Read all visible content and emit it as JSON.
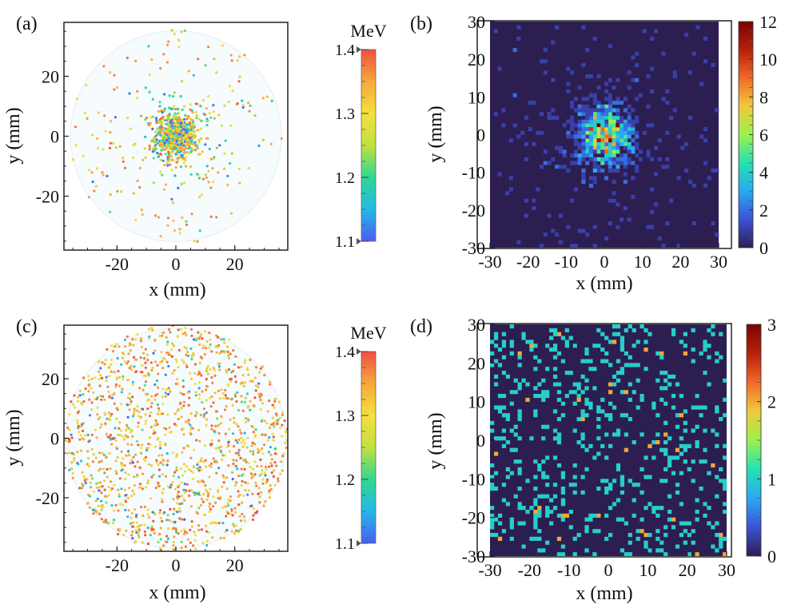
{
  "figure": {
    "panels": [
      "(a)",
      "(b)",
      "(c)",
      "(d)"
    ]
  },
  "colors": {
    "cmap_energy": [
      "#4a5cf0",
      "#25b8e8",
      "#30d890",
      "#c0e040",
      "#f4e03c",
      "#f6a83c",
      "#ee5040"
    ],
    "cmap_density": [
      "#2d1e52",
      "#3d52d6",
      "#2aa8f2",
      "#24e2b2",
      "#9cf04e",
      "#f0c93a",
      "#f06a28",
      "#b8200a",
      "#7a0403"
    ],
    "panel_bg_scatter": "#f6fbfe",
    "heatmap_bg": "#2d1e52"
  },
  "chart_data": [
    {
      "panel": "(a)",
      "type": "scatter",
      "xlabel": "x (mm)",
      "ylabel": "y (mm)",
      "xlim": [
        -38,
        38
      ],
      "ylim": [
        -38,
        38
      ],
      "xticks": [
        -20,
        0,
        20
      ],
      "yticks": [
        -20,
        0,
        20
      ],
      "xtick_labels": [
        "-20",
        "0",
        "20"
      ],
      "ytick_labels": [
        "-20",
        "0",
        "20"
      ],
      "detector_radius_mm": 36,
      "distribution": "concentrated around center (Gaussian, sigma about 4 mm) with sparse scattered points",
      "n_points_approx": 900,
      "color_variable": "energy (MeV), 1.1–1.4"
    },
    {
      "panel": "(a) colorbar",
      "type": "colorbar",
      "unit": "MeV",
      "range": [
        1.1,
        1.4
      ],
      "ticks": [
        1.1,
        1.2,
        1.3,
        1.4
      ],
      "tick_labels": [
        "1.1",
        "1.2",
        "1.3",
        "1.4"
      ]
    },
    {
      "panel": "(b)",
      "type": "heatmap",
      "xlabel": "x (mm)",
      "ylabel": "y (mm)",
      "xlim": [
        -30,
        30
      ],
      "ylim": [
        -30,
        30
      ],
      "xticks": [
        -30,
        -20,
        -10,
        0,
        10,
        20,
        30
      ],
      "xtick_labels": [
        "-30",
        "-20",
        "-10",
        "0",
        "10",
        "20",
        "30"
      ],
      "yticks": [
        -30,
        -20,
        -10,
        0,
        10,
        20,
        30
      ],
      "ytick_labels": [
        "-30",
        "-20",
        "-10",
        "0",
        "10",
        "20",
        "30"
      ],
      "bin_size_mm": 1,
      "max_count": 12,
      "hotspots": [
        [
          -2,
          2,
          9
        ],
        [
          3,
          2,
          8
        ],
        [
          -2,
          -2,
          7
        ],
        [
          2.5,
          -2.5,
          7
        ]
      ],
      "distribution": "counts peak near center (max about 12), sparse single counts elsewhere"
    },
    {
      "panel": "(b) colorbar",
      "type": "colorbar",
      "range": [
        0,
        12
      ],
      "ticks": [
        0,
        2,
        4,
        6,
        8,
        10,
        12
      ],
      "tick_labels": [
        "0",
        "2",
        "4",
        "6",
        "8",
        "10",
        "12"
      ]
    },
    {
      "panel": "(c)",
      "type": "scatter",
      "xlabel": "x (mm)",
      "ylabel": "y (mm)",
      "xlim": [
        -38,
        38
      ],
      "ylim": [
        -38,
        38
      ],
      "xticks": [
        -20,
        0,
        20
      ],
      "yticks": [
        -20,
        0,
        20
      ],
      "xtick_labels": [
        "-20",
        "0",
        "20"
      ],
      "ytick_labels": [
        "-20",
        "0",
        "20"
      ],
      "detector_radius_mm": 38,
      "distribution": "roughly uniform over the circular detector, mostly high energy (orange/yellow)",
      "n_points_approx": 1300,
      "color_variable": "energy (MeV), 1.1–1.4"
    },
    {
      "panel": "(c) colorbar",
      "type": "colorbar",
      "unit": "MeV",
      "range": [
        1.1,
        1.4
      ],
      "ticks": [
        1.1,
        1.2,
        1.3,
        1.4
      ],
      "tick_labels": [
        "1.1",
        "1.2",
        "1.3",
        "1.4"
      ]
    },
    {
      "panel": "(d)",
      "type": "heatmap",
      "xlabel": "x (mm)",
      "ylabel": "y (mm)",
      "xlim": [
        -30,
        30
      ],
      "ylim": [
        -30,
        30
      ],
      "xticks": [
        -30,
        -20,
        -10,
        0,
        10,
        20,
        30
      ],
      "xtick_labels": [
        "-30",
        "-20",
        "-10",
        "0",
        "10",
        "20",
        "30"
      ],
      "yticks": [
        -30,
        -20,
        -10,
        0,
        10,
        20,
        30
      ],
      "ytick_labels": [
        "-30",
        "-20",
        "-10",
        "0",
        "10",
        "20",
        "30"
      ],
      "bin_size_mm": 1,
      "max_count": 3,
      "distribution": "sparse uniform counts, mostly 1, a few 2–3"
    },
    {
      "panel": "(d) colorbar",
      "type": "colorbar",
      "range": [
        0,
        3
      ],
      "ticks": [
        0,
        1,
        2,
        3
      ],
      "tick_labels": [
        "0",
        "1",
        "2",
        "3"
      ]
    }
  ]
}
